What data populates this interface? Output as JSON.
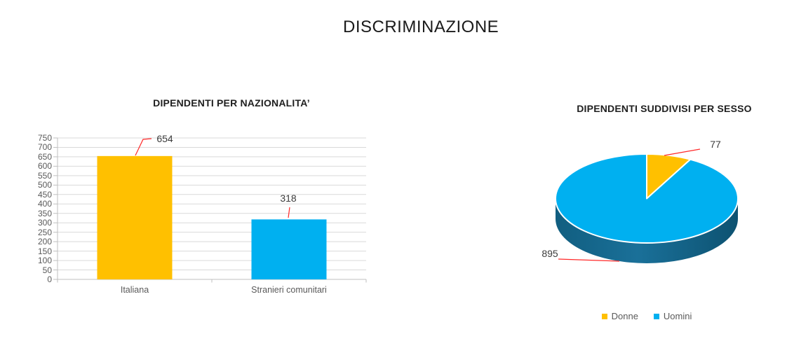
{
  "page": {
    "title": "DISCRIMINAZIONE"
  },
  "colors": {
    "donne": "#FFC000",
    "uomini": "#00B0F0",
    "leader_line": "#FF2A2A",
    "gridline": "#D9D9D9",
    "axis": "#BFBFBF",
    "pie_side_dark": "#0D5271",
    "pie_side_mid": "#1A7099",
    "text_muted": "#595959"
  },
  "chart_data": [
    {
      "type": "bar",
      "title": "DIPENDENTI PER NAZIONALITA’",
      "categories": [
        "Italiana",
        "Stranieri comunitari"
      ],
      "values": [
        654,
        318
      ],
      "bar_colors": [
        "#FFC000",
        "#00B0F0"
      ],
      "data_labels": [
        654,
        318
      ],
      "yticks": [
        0,
        50,
        100,
        150,
        200,
        250,
        300,
        350,
        400,
        450,
        500,
        550,
        600,
        650,
        700,
        750
      ],
      "ylim": [
        0,
        750
      ],
      "xlabel": "",
      "ylabel": "",
      "grid": true,
      "legend": "none"
    },
    {
      "type": "pie",
      "style": "3d",
      "title": "DIPENDENTI SUDDIVISI PER SESSO",
      "labels": [
        "Donne",
        "Uomini"
      ],
      "values": [
        77,
        895
      ],
      "slice_colors": [
        "#FFC000",
        "#00B0F0"
      ],
      "data_labels": [
        77,
        895
      ],
      "legend_position": "bottom"
    }
  ]
}
